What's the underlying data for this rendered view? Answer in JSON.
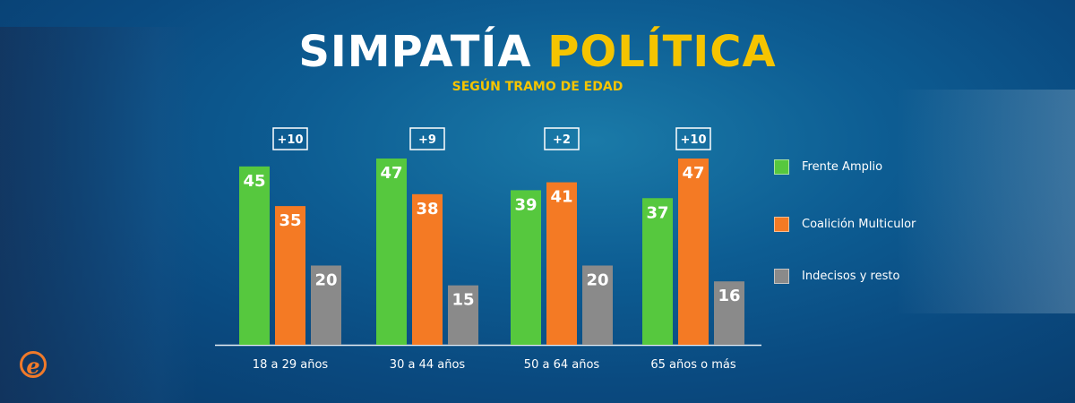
{
  "chart_data": {
    "type": "bar",
    "title": "SIMPATÍA",
    "title_highlight": "POLÍTICA",
    "subtitle": "SEGÚN TRAMO DE EDAD",
    "categories": [
      "18 a 29 años",
      "30 a 44 años",
      "50 a 64 años",
      "65 años o más"
    ],
    "series": [
      {
        "name": "Frente Amplio",
        "color": "#56c83e",
        "values": [
          45,
          47,
          39,
          37
        ]
      },
      {
        "name": "Coalición Multiculor",
        "color": "#f47a24",
        "values": [
          35,
          38,
          41,
          47
        ]
      },
      {
        "name": "Indecisos y resto",
        "color": "#8a8a8a",
        "values": [
          20,
          15,
          20,
          16
        ]
      }
    ],
    "margins": [
      "+10",
      "+9",
      "+2",
      "+10"
    ],
    "ylim": [
      0,
      50
    ],
    "grid": false,
    "legend_position": "right"
  },
  "logo_text": "e"
}
